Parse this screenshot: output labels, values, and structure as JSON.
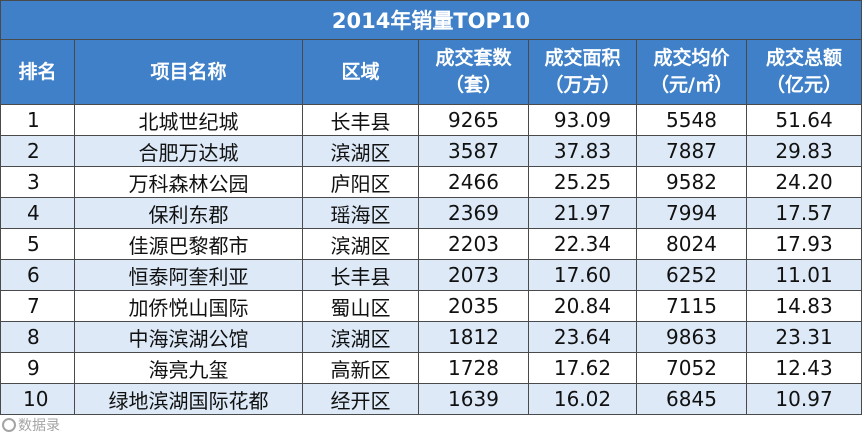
{
  "title": "2014年销量TOP10",
  "colors": {
    "header_bg": "#3f80c8",
    "header_text": "#ffffff",
    "alt_row_bg": "#dde9f7",
    "border": "#4a4a4a"
  },
  "columns": [
    {
      "line1": "排名",
      "line2": ""
    },
    {
      "line1": "项目名称",
      "line2": ""
    },
    {
      "line1": "区域",
      "line2": ""
    },
    {
      "line1": "成交套数",
      "line2": "（套）"
    },
    {
      "line1": "成交面积",
      "line2": "（万方）"
    },
    {
      "line1": "成交均价",
      "line2": "（元/㎡）"
    },
    {
      "line1": "成交总额",
      "line2": "（亿元）"
    }
  ],
  "rows": [
    [
      "1",
      "北城世纪城",
      "长丰县",
      "9265",
      "93.09",
      "5548",
      "51.64"
    ],
    [
      "2",
      "合肥万达城",
      "滨湖区",
      "3587",
      "37.83",
      "7887",
      "29.83"
    ],
    [
      "3",
      "万科森林公园",
      "庐阳区",
      "2466",
      "25.25",
      "9582",
      "24.20"
    ],
    [
      "4",
      "保利东郡",
      "瑶海区",
      "2369",
      "21.97",
      "7994",
      "17.57"
    ],
    [
      "5",
      "佳源巴黎都市",
      "滨湖区",
      "2203",
      "22.34",
      "8024",
      "17.93"
    ],
    [
      "6",
      "恒泰阿奎利亚",
      "长丰县",
      "2073",
      "17.60",
      "6252",
      "11.01"
    ],
    [
      "7",
      "加侨悦山国际",
      "蜀山区",
      "2035",
      "20.84",
      "7115",
      "14.83"
    ],
    [
      "8",
      "中海滨湖公馆",
      "滨湖区",
      "1812",
      "23.64",
      "9863",
      "23.31"
    ],
    [
      "9",
      "海亮九玺",
      "高新区",
      "1728",
      "17.62",
      "7052",
      "12.43"
    ],
    [
      "10",
      "绿地滨湖国际花都",
      "经开区",
      "1639",
      "16.02",
      "6845",
      "10.97"
    ]
  ],
  "watermark": "数据录"
}
